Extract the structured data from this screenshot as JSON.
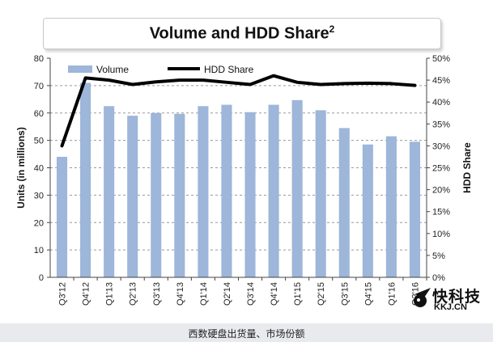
{
  "title": "Volume and HDD Share",
  "title_sup": "2",
  "caption": "西数硬盘出货量、市场份额",
  "watermark": {
    "text": "快科技",
    "sub": "KKJ.CN",
    "icon": "comet-logo-icon"
  },
  "chart_data": {
    "type": "bar+line",
    "categories": [
      "Q3'12",
      "Q4'12",
      "Q1'13",
      "Q2'13",
      "Q3'13",
      "Q4'13",
      "Q1'14",
      "Q2'14",
      "Q3'14",
      "Q4'14",
      "Q1'15",
      "Q2'15",
      "Q3'15",
      "Q4'15",
      "Q1'16",
      "Q2'16"
    ],
    "series": [
      {
        "name": "Volume",
        "type": "bar",
        "axis": "left",
        "color": "#9db6d9",
        "values": [
          44,
          71,
          62.5,
          59,
          60,
          59.7,
          62.5,
          63,
          60.3,
          63,
          64.7,
          61,
          54.5,
          48.5,
          51.5,
          49.5
        ]
      },
      {
        "name": "HDD Share",
        "type": "line",
        "axis": "right",
        "color": "#000000",
        "values": [
          30,
          45.5,
          45,
          44,
          44.6,
          45,
          45,
          44.5,
          44,
          46,
          44.5,
          44,
          44.2,
          44.3,
          44.2,
          43.8
        ]
      }
    ],
    "ylabel": "Units (in millions)",
    "ylabel_right": "HDD Share",
    "ylim": [
      0,
      80
    ],
    "y_ticks": [
      "0",
      "10",
      "20",
      "30",
      "40",
      "50",
      "60",
      "70",
      "80"
    ],
    "ylim_right": [
      0,
      50
    ],
    "y_right_ticks": [
      "0%",
      "5%",
      "10%",
      "15%",
      "20%",
      "25%",
      "30%",
      "35%",
      "40%",
      "45%",
      "50%"
    ],
    "grid": "dashed-horizontal",
    "legend": "top"
  }
}
